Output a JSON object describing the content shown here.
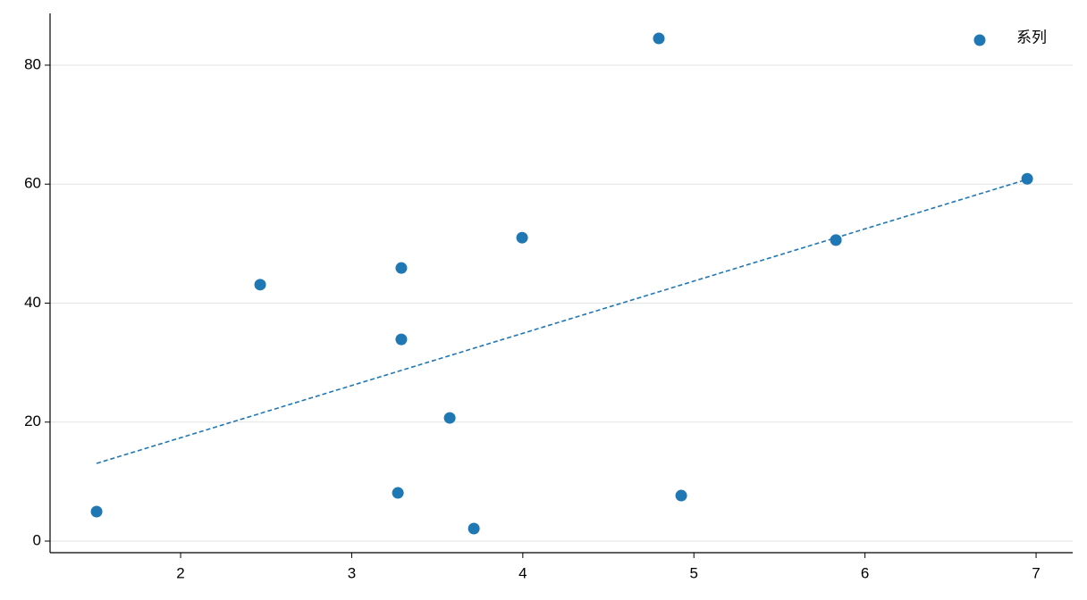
{
  "chart_data": {
    "type": "scatter",
    "series": [
      {
        "name": "系列",
        "color": "#1f77b4",
        "x": [
          1.509,
          2.465,
          3.29,
          3.29,
          3.27,
          3.573,
          3.714,
          3.996,
          4.795,
          4.926,
          5.83,
          6.948
        ],
        "values": [
          4.95,
          43.1,
          45.9,
          33.9,
          8.1,
          20.7,
          2.1,
          51.0,
          84.5,
          7.65,
          50.6,
          60.9
        ]
      }
    ],
    "trendline": {
      "x": [
        1.509,
        6.948
      ],
      "values": [
        13.06,
        60.8
      ],
      "color": "#1f77b4"
    },
    "xlim": [
      1.237,
      7.214
    ],
    "ylim": [
      -1.95,
      88.7
    ],
    "xticks": [
      2,
      3,
      4,
      5,
      6,
      7
    ],
    "yticks": [
      0,
      20,
      40,
      60,
      80
    ],
    "grid": true,
    "legend": "upper right"
  }
}
